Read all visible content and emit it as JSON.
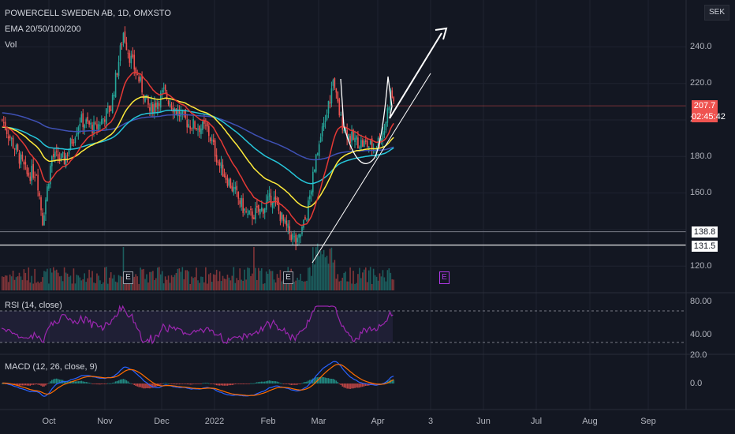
{
  "header": {
    "symbol": "POWERCELL SWEDEN AB, 1D, OMXSTO",
    "ema_label": "EMA 20/50/100/200",
    "vol_label": "Vol",
    "currency_button": "SEK"
  },
  "price_panel": {
    "last_price": "207.7",
    "countdown": "02:45:42",
    "level_1": "138.8",
    "level_2": "131.5",
    "earnings_marker": "E",
    "y_ticks": [
      "240.0",
      "220.0",
      "200.0",
      "180.0",
      "160.0",
      "120.0"
    ]
  },
  "rsi_panel": {
    "label": "RSI (14, close)",
    "y_ticks": [
      "80.00",
      "40.00"
    ]
  },
  "macd_panel": {
    "label": "MACD (12, 26, close, 9)",
    "y_ticks": [
      "20.0",
      "0.0"
    ]
  },
  "x_axis": {
    "ticks": [
      "Oct",
      "Nov",
      "Dec",
      "2022",
      "Feb",
      "Mar",
      "Apr",
      "3",
      "Jun",
      "Jul",
      "Aug",
      "Sep"
    ]
  },
  "colors": {
    "background": "#131722",
    "up": "#26a69a",
    "down": "#ef5350",
    "ema20": "#e53935",
    "ema50": "#ffeb3b",
    "ema100": "#26c6da",
    "ema200": "#3f51b5",
    "rsi": "#9c27b0",
    "macd": "#2962ff",
    "signal": "#ff6d00"
  },
  "chart_data": {
    "type": "candlestick",
    "title": "POWERCELL SWEDEN AB, 1D, OMXSTO",
    "ylim": [
      110,
      262
    ],
    "key_prices": {
      "peak_nov": 251,
      "low_jan": 140,
      "low_feb": 132,
      "peak_mar": 222,
      "peak_apr": 222,
      "last": 207.7
    },
    "horizontal_levels": [
      138.8,
      131.5
    ],
    "ema_last": {
      "ema20": 190,
      "ema50": 180,
      "ema100": 179,
      "ema200": 188
    },
    "rsi_last": 70,
    "macd_last": {
      "macd": 8,
      "signal": 6
    }
  }
}
